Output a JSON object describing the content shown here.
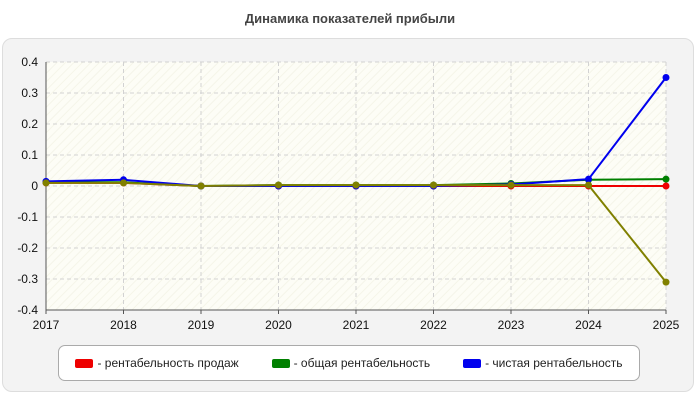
{
  "chart_data": {
    "type": "line",
    "title": "Динамика показателей прибыли",
    "x": [
      2017,
      2018,
      2019,
      2020,
      2021,
      2022,
      2023,
      2024,
      2025
    ],
    "xlabel": "",
    "ylabel": "",
    "ylim": [
      -0.4,
      0.4
    ],
    "yticks": [
      0.4,
      0.3,
      0.2,
      0.1,
      0,
      -0.1,
      -0.2,
      -0.3,
      -0.4
    ],
    "ytick_labels": [
      "0.4",
      "0.3",
      "0.2",
      "0.1",
      "0",
      "-0.1",
      "-0.2",
      "-0.3",
      "-0.4"
    ],
    "grid": true,
    "legend_position": "bottom",
    "series": [
      {
        "name": "- рентабельность продаж",
        "color": "#ee0000",
        "values": [
          0.01,
          0.01,
          0.0,
          0.0,
          0.0,
          0.0,
          0.0,
          0.0,
          0.0
        ]
      },
      {
        "name": "- общая рентабельность",
        "color": "#008000",
        "values": [
          0.012,
          0.012,
          0.0,
          0.003,
          0.003,
          0.003,
          0.008,
          0.02,
          0.022
        ]
      },
      {
        "name": "- чистая рентабельность",
        "color": "#0000ee",
        "values": [
          0.015,
          0.02,
          0.0,
          0.0,
          0.0,
          0.0,
          0.005,
          0.022,
          0.35
        ]
      },
      {
        "name": "",
        "color": "#808000",
        "values": [
          0.01,
          0.01,
          0.0,
          0.003,
          0.003,
          0.003,
          0.003,
          0.003,
          -0.31
        ]
      }
    ]
  }
}
